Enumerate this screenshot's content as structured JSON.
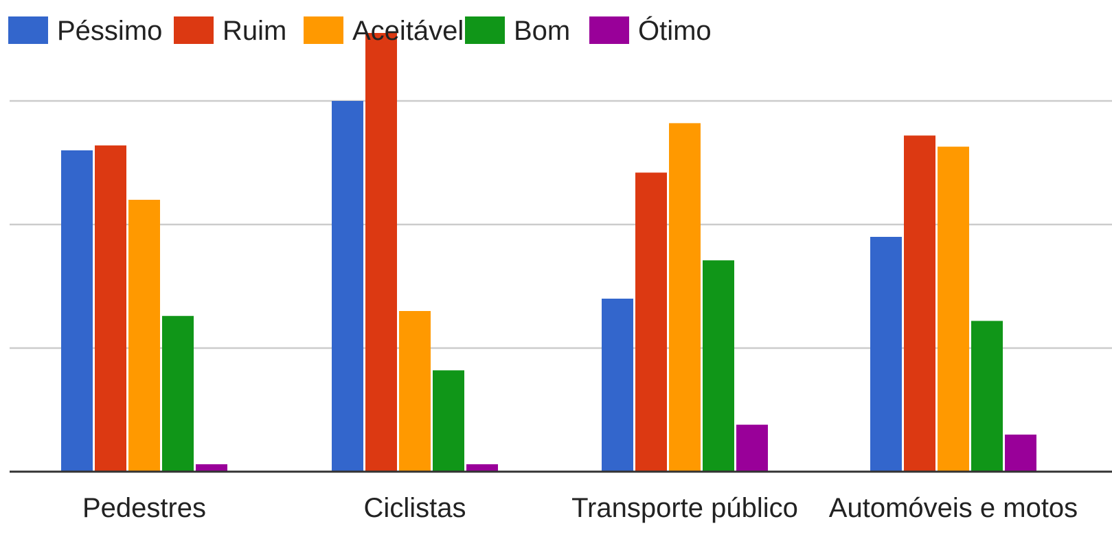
{
  "chart_data": {
    "type": "bar",
    "title": "",
    "xlabel": "",
    "ylabel": "",
    "categories": [
      "Pedestres",
      "Ciclistas",
      "Transporte público",
      "Automóveis e motos"
    ],
    "series": [
      {
        "name": "Péssimo",
        "color": "#3366cc",
        "values": [
          26,
          30,
          14,
          19
        ]
      },
      {
        "name": "Ruim",
        "color": "#dc3912",
        "values": [
          26.4,
          35.5,
          24.2,
          27.2
        ]
      },
      {
        "name": "Aceitável",
        "color": "#ff9900",
        "values": [
          22,
          13,
          28.2,
          26.3
        ]
      },
      {
        "name": "Bom",
        "color": "#109618",
        "values": [
          12.6,
          8.2,
          17.1,
          12.2
        ]
      },
      {
        "name": "Ótimo",
        "color": "#990099",
        "values": [
          0.6,
          0.6,
          3.8,
          3
        ]
      }
    ],
    "ylim": [
      0,
      36
    ],
    "gridlines": [
      10,
      20,
      30
    ],
    "grid": true,
    "legend_position": "top",
    "axis_color": "#333333",
    "grid_color": "#cccccc"
  }
}
